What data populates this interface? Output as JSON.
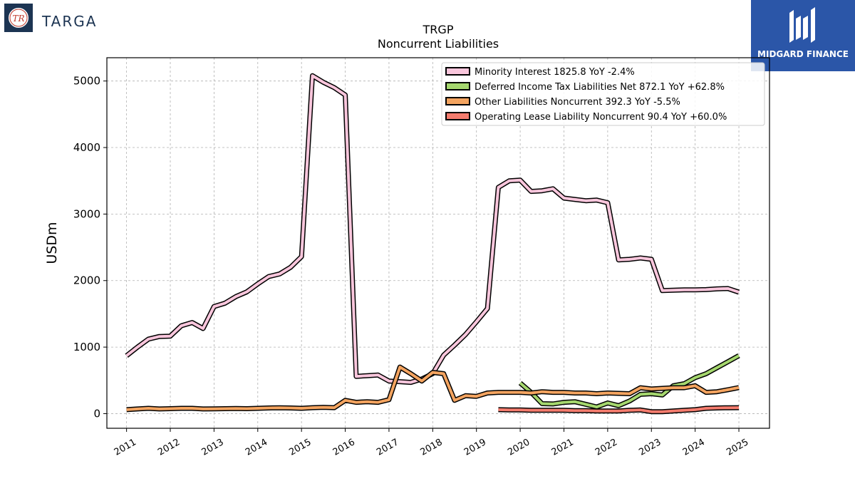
{
  "logos": {
    "left_name": "TARGA",
    "right_name": "MIDGARD FINANCE"
  },
  "chart_data": {
    "type": "line",
    "title": "TRGP",
    "subtitle": "Noncurrent  Liabilities",
    "xlabel": "",
    "ylabel": "USDm",
    "xlim": [
      2010.55,
      2025.7
    ],
    "ylim": [
      -220,
      5350
    ],
    "x_ticks": [
      2011,
      2012,
      2013,
      2014,
      2015,
      2016,
      2017,
      2018,
      2019,
      2020,
      2021,
      2022,
      2023,
      2024,
      2025
    ],
    "y_ticks": [
      0,
      1000,
      2000,
      3000,
      4000,
      5000
    ],
    "grid": true,
    "legend_position": "top-right",
    "series": [
      {
        "name": "Minority Interest  1825.8 YoY -2.4%",
        "color": "#f9c6dc",
        "points": [
          [
            2011.0,
            870
          ],
          [
            2011.25,
            1000
          ],
          [
            2011.5,
            1120
          ],
          [
            2011.75,
            1160
          ],
          [
            2012.0,
            1165
          ],
          [
            2012.25,
            1320
          ],
          [
            2012.5,
            1370
          ],
          [
            2012.75,
            1280
          ],
          [
            2013.0,
            1610
          ],
          [
            2013.25,
            1660
          ],
          [
            2013.5,
            1760
          ],
          [
            2013.75,
            1830
          ],
          [
            2014.0,
            1950
          ],
          [
            2014.25,
            2060
          ],
          [
            2014.5,
            2100
          ],
          [
            2014.75,
            2200
          ],
          [
            2015.0,
            2360
          ],
          [
            2015.25,
            5080
          ],
          [
            2015.5,
            4980
          ],
          [
            2015.75,
            4900
          ],
          [
            2016.0,
            4790
          ],
          [
            2016.25,
            560
          ],
          [
            2016.5,
            570
          ],
          [
            2016.75,
            580
          ],
          [
            2017.0,
            490
          ],
          [
            2017.25,
            480
          ],
          [
            2017.5,
            470
          ],
          [
            2017.75,
            520
          ],
          [
            2018.0,
            600
          ],
          [
            2018.25,
            880
          ],
          [
            2018.5,
            1030
          ],
          [
            2018.75,
            1190
          ],
          [
            2019.0,
            1380
          ],
          [
            2019.25,
            1580
          ],
          [
            2019.5,
            3400
          ],
          [
            2019.75,
            3500
          ],
          [
            2020.0,
            3510
          ],
          [
            2020.25,
            3340
          ],
          [
            2020.5,
            3350
          ],
          [
            2020.75,
            3380
          ],
          [
            2021.0,
            3240
          ],
          [
            2021.25,
            3220
          ],
          [
            2021.5,
            3200
          ],
          [
            2021.75,
            3210
          ],
          [
            2022.0,
            3170
          ],
          [
            2022.25,
            2310
          ],
          [
            2022.5,
            2320
          ],
          [
            2022.75,
            2340
          ],
          [
            2023.0,
            2320
          ],
          [
            2023.25,
            1850
          ],
          [
            2023.5,
            1855
          ],
          [
            2023.75,
            1860
          ],
          [
            2024.0,
            1860
          ],
          [
            2024.25,
            1865
          ],
          [
            2024.5,
            1875
          ],
          [
            2024.75,
            1880
          ],
          [
            2025.0,
            1826
          ]
        ]
      },
      {
        "name": "Deferred Income Tax Liabilities Net  872.1 YoY +62.8%",
        "color": "#a5d76e",
        "points": [
          [
            2020.0,
            460
          ],
          [
            2020.25,
            320
          ],
          [
            2020.5,
            150
          ],
          [
            2020.75,
            145
          ],
          [
            2021.0,
            170
          ],
          [
            2021.25,
            180
          ],
          [
            2021.5,
            140
          ],
          [
            2021.75,
            100
          ],
          [
            2022.0,
            160
          ],
          [
            2022.25,
            120
          ],
          [
            2022.5,
            190
          ],
          [
            2022.75,
            290
          ],
          [
            2023.0,
            300
          ],
          [
            2023.25,
            280
          ],
          [
            2023.5,
            420
          ],
          [
            2023.75,
            450
          ],
          [
            2024.0,
            540
          ],
          [
            2024.25,
            600
          ],
          [
            2024.5,
            690
          ],
          [
            2024.75,
            780
          ],
          [
            2025.0,
            872
          ]
        ]
      },
      {
        "name": "Other Liabilities Noncurrent  392.3 YoY -5.5%",
        "color": "#f4a460",
        "points": [
          [
            2011.0,
            60
          ],
          [
            2011.25,
            70
          ],
          [
            2011.5,
            80
          ],
          [
            2011.75,
            70
          ],
          [
            2012.0,
            75
          ],
          [
            2012.25,
            80
          ],
          [
            2012.5,
            80
          ],
          [
            2012.75,
            70
          ],
          [
            2013.0,
            72
          ],
          [
            2013.25,
            75
          ],
          [
            2013.5,
            78
          ],
          [
            2013.75,
            75
          ],
          [
            2014.0,
            80
          ],
          [
            2014.25,
            85
          ],
          [
            2014.5,
            88
          ],
          [
            2014.75,
            85
          ],
          [
            2015.0,
            80
          ],
          [
            2015.25,
            90
          ],
          [
            2015.5,
            95
          ],
          [
            2015.75,
            90
          ],
          [
            2016.0,
            200
          ],
          [
            2016.25,
            170
          ],
          [
            2016.5,
            180
          ],
          [
            2016.75,
            170
          ],
          [
            2017.0,
            210
          ],
          [
            2017.25,
            700
          ],
          [
            2017.5,
            600
          ],
          [
            2017.75,
            490
          ],
          [
            2018.0,
            620
          ],
          [
            2018.25,
            600
          ],
          [
            2018.5,
            200
          ],
          [
            2018.75,
            270
          ],
          [
            2019.0,
            260
          ],
          [
            2019.25,
            310
          ],
          [
            2019.5,
            320
          ],
          [
            2019.75,
            320
          ],
          [
            2020.0,
            320
          ],
          [
            2020.25,
            310
          ],
          [
            2020.5,
            330
          ],
          [
            2020.75,
            320
          ],
          [
            2021.0,
            320
          ],
          [
            2021.25,
            310
          ],
          [
            2021.5,
            310
          ],
          [
            2021.75,
            300
          ],
          [
            2022.0,
            310
          ],
          [
            2022.25,
            305
          ],
          [
            2022.5,
            300
          ],
          [
            2022.75,
            390
          ],
          [
            2023.0,
            370
          ],
          [
            2023.25,
            380
          ],
          [
            2023.5,
            390
          ],
          [
            2023.75,
            390
          ],
          [
            2024.0,
            420
          ],
          [
            2024.25,
            320
          ],
          [
            2024.5,
            330
          ],
          [
            2024.75,
            360
          ],
          [
            2025.0,
            392
          ]
        ]
      },
      {
        "name": "Operating Lease Liability Noncurrent  90.4 YoY +60.0%",
        "color": "#f47c6e",
        "points": [
          [
            2019.5,
            60
          ],
          [
            2019.75,
            55
          ],
          [
            2020.0,
            55
          ],
          [
            2020.25,
            50
          ],
          [
            2020.5,
            50
          ],
          [
            2020.75,
            50
          ],
          [
            2021.0,
            50
          ],
          [
            2021.25,
            45
          ],
          [
            2021.5,
            45
          ],
          [
            2021.75,
            40
          ],
          [
            2022.0,
            40
          ],
          [
            2022.25,
            40
          ],
          [
            2022.5,
            50
          ],
          [
            2022.75,
            55
          ],
          [
            2023.0,
            30
          ],
          [
            2023.25,
            30
          ],
          [
            2023.5,
            40
          ],
          [
            2023.75,
            50
          ],
          [
            2024.0,
            60
          ],
          [
            2024.25,
            80
          ],
          [
            2024.5,
            85
          ],
          [
            2024.75,
            88
          ],
          [
            2025.0,
            90
          ]
        ]
      }
    ]
  }
}
